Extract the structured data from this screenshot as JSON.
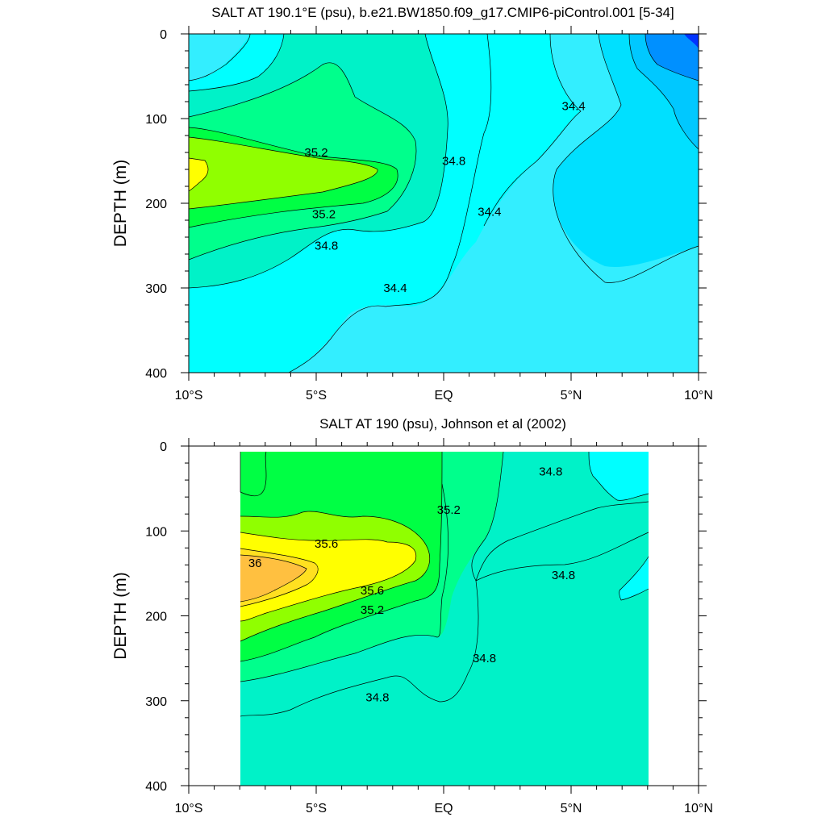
{
  "colors": {
    "s34_0": "#0033ff",
    "s34_2": "#0090ff",
    "s34_4": "#00c8ff",
    "s34_6": "#00e0ff",
    "s34_8": "#33eeff",
    "s35_0": "#00ffff",
    "s35_2": "#00f2c8",
    "s35_4": "#00ff8c",
    "s35_6": "#00ff44",
    "s35_8": "#90ff00",
    "s36_0": "#ffff00",
    "s36_2": "#ffe020",
    "s36_4": "#ffc040"
  },
  "chart_data": [
    {
      "type": "contour",
      "title": "SALT AT 190.1°E (psu), b.e21.BW1850.f09_g17.CMIP6-piControl.001 [5-34]",
      "ylabel": "DEPTH (m)",
      "xlim": [
        -10,
        10
      ],
      "ylim": [
        0,
        400
      ],
      "y_inverted": true,
      "x_ticks": [
        -10,
        -5,
        0,
        5,
        10
      ],
      "x_tick_labels": [
        "10°S",
        "5°S",
        "EQ",
        "5°N",
        "10°N"
      ],
      "y_ticks": [
        0,
        100,
        200,
        300,
        400
      ],
      "y_tick_labels": [
        "0",
        "100",
        "200",
        "300",
        "400"
      ],
      "contour_levels": [
        34.2,
        34.4,
        34.6,
        34.8,
        35.0,
        35.2,
        35.4,
        35.6
      ],
      "data_extent_x": [
        -10,
        10
      ],
      "contour_labels": [
        {
          "text": "35.2",
          "x": -5.0,
          "y": 140
        },
        {
          "text": "34.8",
          "x": 0.4,
          "y": 150
        },
        {
          "text": "34.4",
          "x": 5.1,
          "y": 85
        },
        {
          "text": "35.2",
          "x": -4.7,
          "y": 213
        },
        {
          "text": "34.4",
          "x": 1.8,
          "y": 210
        },
        {
          "text": "34.8",
          "x": -4.6,
          "y": 250
        },
        {
          "text": "34.4",
          "x": -1.9,
          "y": 300
        }
      ]
    },
    {
      "type": "contour",
      "title": "SALT AT 190 (psu), Johnson et al (2002)",
      "ylabel": "DEPTH (m)",
      "xlim": [
        -10,
        10
      ],
      "ylim": [
        0,
        400
      ],
      "y_inverted": true,
      "x_ticks": [
        -10,
        -5,
        0,
        5,
        10
      ],
      "x_tick_labels": [
        "10°S",
        "5°S",
        "EQ",
        "5°N",
        "10°N"
      ],
      "y_ticks": [
        0,
        100,
        200,
        300,
        400
      ],
      "y_tick_labels": [
        "0",
        "100",
        "200",
        "300",
        "400"
      ],
      "contour_levels": [
        34.8,
        35.0,
        35.2,
        35.4,
        35.6,
        35.8,
        36.0
      ],
      "data_extent_x": [
        -8,
        8
      ],
      "contour_labels": [
        {
          "text": "34.8",
          "x": 4.2,
          "y": 30
        },
        {
          "text": "35.2",
          "x": 0.2,
          "y": 75
        },
        {
          "text": "35.6",
          "x": -4.6,
          "y": 115
        },
        {
          "text": "36",
          "x": -7.4,
          "y": 138
        },
        {
          "text": "35.6",
          "x": -2.8,
          "y": 170
        },
        {
          "text": "35.2",
          "x": -2.8,
          "y": 193
        },
        {
          "text": "34.8",
          "x": 4.7,
          "y": 152
        },
        {
          "text": "34.8",
          "x": 1.6,
          "y": 250
        },
        {
          "text": "34.8",
          "x": -2.6,
          "y": 296
        }
      ]
    }
  ]
}
